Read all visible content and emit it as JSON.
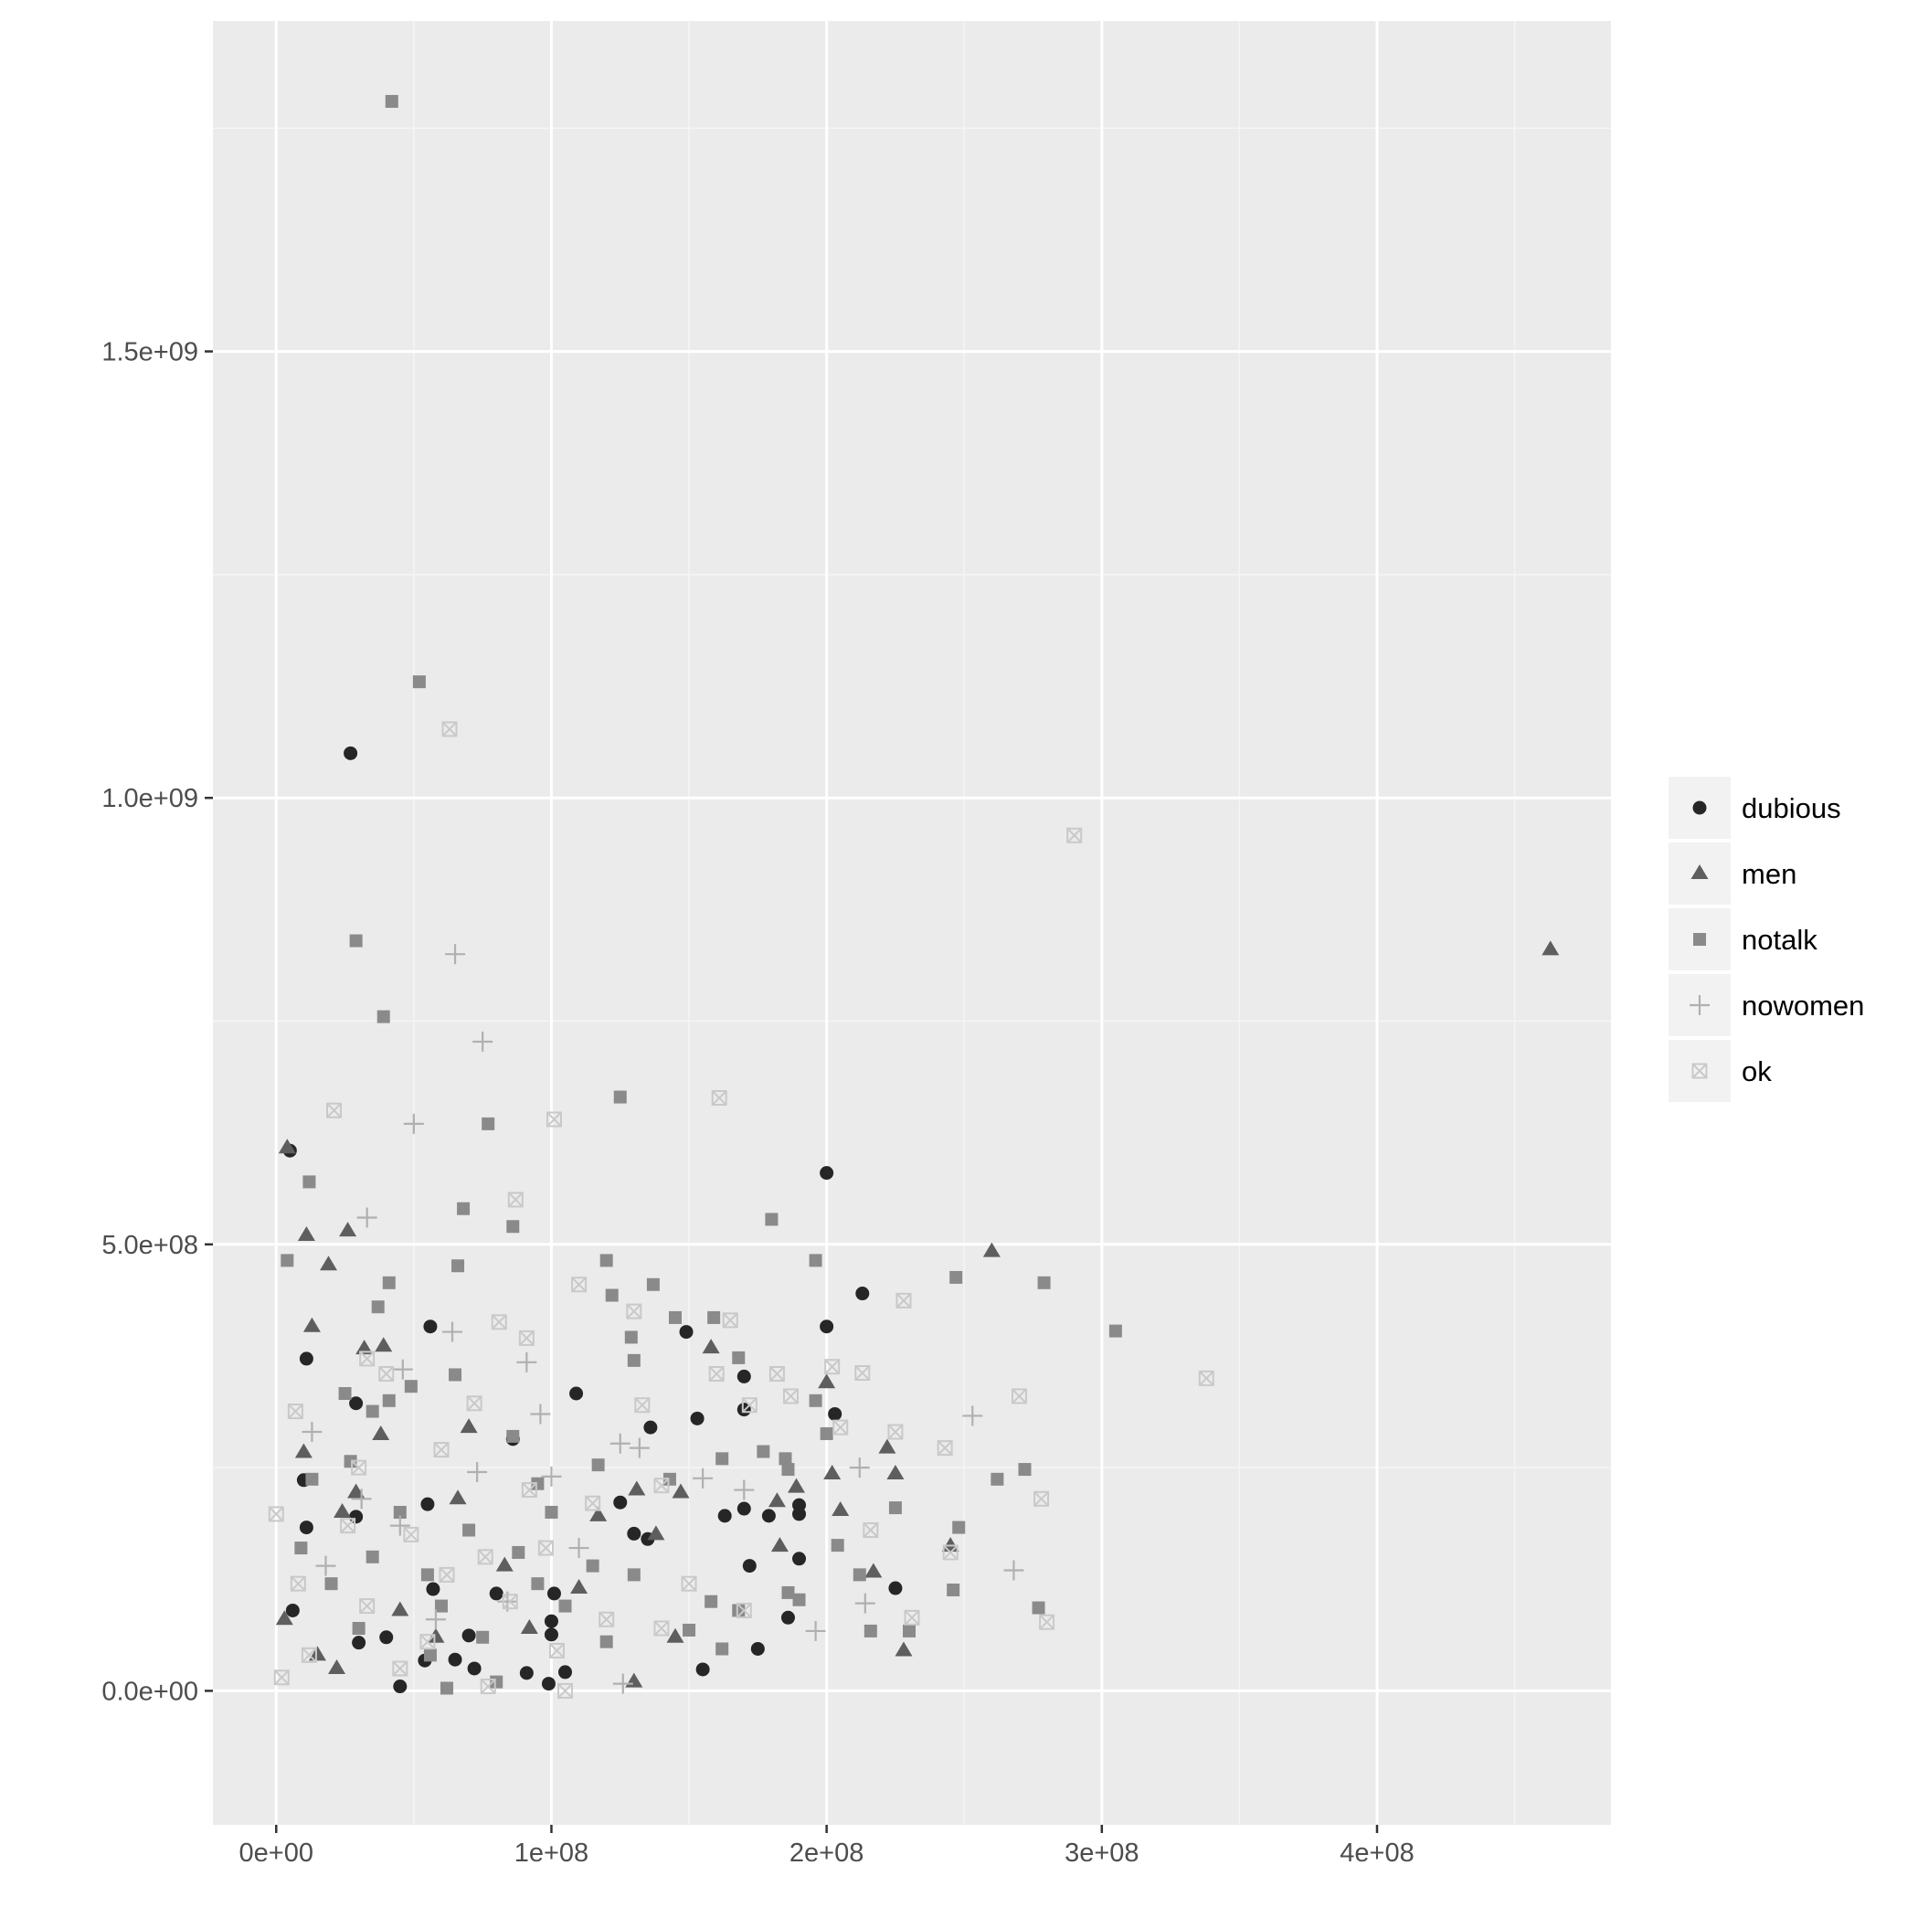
{
  "chart_data": {
    "type": "scatter",
    "title": "",
    "xlabel": "",
    "ylabel": "",
    "xlim": [
      -23000000,
      485000000
    ],
    "ylim": [
      -150000000,
      1870000000
    ],
    "x_ticks": [
      {
        "value": 0,
        "label": "0e+00"
      },
      {
        "value": 100000000,
        "label": "1e+08"
      },
      {
        "value": 200000000,
        "label": "2e+08"
      },
      {
        "value": 300000000,
        "label": "3e+08"
      },
      {
        "value": 400000000,
        "label": "4e+08"
      }
    ],
    "y_ticks": [
      {
        "value": 0,
        "label": "0.0e+00"
      },
      {
        "value": 500000000,
        "label": "5.0e+08"
      },
      {
        "value": 1000000000,
        "label": "1.0e+09"
      },
      {
        "value": 1500000000,
        "label": "1.5e+09"
      }
    ],
    "grid": true,
    "legend_position": "right",
    "colors": {
      "panel_background": "#ebebeb",
      "grid_major": "#ffffff",
      "grid_minor": "#f5f5f5",
      "tick_label": "#4d4d4d",
      "legend_key_background": "#f2f2f2"
    },
    "series": [
      {
        "name": "dubious",
        "shape": "circle",
        "color": "#262626",
        "points": [
          [
            27000000,
            1050000000
          ],
          [
            5000000,
            605000000
          ],
          [
            200000000,
            580000000
          ],
          [
            213000000,
            445000000
          ],
          [
            56000000,
            408000000
          ],
          [
            11000000,
            372000000
          ],
          [
            200000000,
            408000000
          ],
          [
            149000000,
            402000000
          ],
          [
            170000000,
            352000000
          ],
          [
            29000000,
            322000000
          ],
          [
            109000000,
            333000000
          ],
          [
            153000000,
            305000000
          ],
          [
            170000000,
            315000000
          ],
          [
            203000000,
            310000000
          ],
          [
            136000000,
            295000000
          ],
          [
            86000000,
            282000000
          ],
          [
            10000000,
            236000000
          ],
          [
            55000000,
            209000000
          ],
          [
            125000000,
            211000000
          ],
          [
            170000000,
            204000000
          ],
          [
            190000000,
            208000000
          ],
          [
            190000000,
            198000000
          ],
          [
            163000000,
            196000000
          ],
          [
            179000000,
            196000000
          ],
          [
            11000000,
            183000000
          ],
          [
            29000000,
            195000000
          ],
          [
            130000000,
            176000000
          ],
          [
            135000000,
            170000000
          ],
          [
            190000000,
            148000000
          ],
          [
            172000000,
            140000000
          ],
          [
            225000000,
            115000000
          ],
          [
            57000000,
            114000000
          ],
          [
            80000000,
            109000000
          ],
          [
            101000000,
            109000000
          ],
          [
            186000000,
            82000000
          ],
          [
            100000000,
            78000000
          ],
          [
            6000000,
            90000000
          ],
          [
            70000000,
            62000000
          ],
          [
            100000000,
            63000000
          ],
          [
            30000000,
            54000000
          ],
          [
            40000000,
            60000000
          ],
          [
            54000000,
            34000000
          ],
          [
            65000000,
            35000000
          ],
          [
            105000000,
            21000000
          ],
          [
            91000000,
            20000000
          ],
          [
            99000000,
            8000000
          ],
          [
            155000000,
            24000000
          ],
          [
            175000000,
            47000000
          ],
          [
            45000000,
            5000000
          ],
          [
            72000000,
            25000000
          ]
        ]
      },
      {
        "name": "men",
        "shape": "triangle",
        "color": "#5e5e5e",
        "points": [
          [
            463000000,
            830000000
          ],
          [
            4000000,
            608000000
          ],
          [
            11000000,
            510000000
          ],
          [
            26000000,
            515000000
          ],
          [
            19000000,
            477000000
          ],
          [
            260000000,
            492000000
          ],
          [
            13000000,
            408000000
          ],
          [
            39000000,
            386000000
          ],
          [
            32000000,
            383000000
          ],
          [
            158000000,
            384000000
          ],
          [
            38000000,
            287000000
          ],
          [
            70000000,
            295000000
          ],
          [
            200000000,
            345000000
          ],
          [
            10000000,
            267000000
          ],
          [
            202000000,
            243000000
          ],
          [
            222000000,
            272000000
          ],
          [
            225000000,
            243000000
          ],
          [
            29000000,
            222000000
          ],
          [
            131000000,
            225000000
          ],
          [
            147000000,
            222000000
          ],
          [
            182000000,
            212000000
          ],
          [
            205000000,
            202000000
          ],
          [
            245000000,
            162000000
          ],
          [
            24000000,
            200000000
          ],
          [
            66000000,
            215000000
          ],
          [
            117000000,
            196000000
          ],
          [
            138000000,
            175000000
          ],
          [
            183000000,
            162000000
          ],
          [
            217000000,
            133000000
          ],
          [
            83000000,
            140000000
          ],
          [
            110000000,
            115000000
          ],
          [
            189000000,
            228000000
          ],
          [
            228000000,
            45000000
          ],
          [
            130000000,
            10000000
          ],
          [
            3000000,
            80000000
          ],
          [
            15000000,
            40000000
          ],
          [
            22000000,
            25000000
          ],
          [
            45000000,
            90000000
          ],
          [
            58000000,
            60000000
          ],
          [
            92000000,
            70000000
          ],
          [
            145000000,
            60000000
          ]
        ]
      },
      {
        "name": "notalk",
        "shape": "square",
        "color": "#8a8a8a",
        "points": [
          [
            42000000,
            1780000000
          ],
          [
            52000000,
            1130000000
          ],
          [
            29000000,
            840000000
          ],
          [
            39000000,
            755000000
          ],
          [
            125000000,
            665000000
          ],
          [
            77000000,
            635000000
          ],
          [
            12000000,
            570000000
          ],
          [
            180000000,
            528000000
          ],
          [
            68000000,
            540000000
          ],
          [
            86000000,
            520000000
          ],
          [
            4000000,
            482000000
          ],
          [
            66000000,
            476000000
          ],
          [
            120000000,
            482000000
          ],
          [
            196000000,
            482000000
          ],
          [
            41000000,
            457000000
          ],
          [
            137000000,
            455000000
          ],
          [
            247000000,
            463000000
          ],
          [
            279000000,
            457000000
          ],
          [
            122000000,
            443000000
          ],
          [
            305000000,
            403000000
          ],
          [
            37000000,
            430000000
          ],
          [
            145000000,
            418000000
          ],
          [
            159000000,
            418000000
          ],
          [
            129000000,
            396000000
          ],
          [
            130000000,
            370000000
          ],
          [
            168000000,
            373000000
          ],
          [
            65000000,
            354000000
          ],
          [
            49000000,
            341000000
          ],
          [
            41000000,
            325000000
          ],
          [
            25000000,
            333000000
          ],
          [
            35000000,
            313000000
          ],
          [
            196000000,
            325000000
          ],
          [
            200000000,
            288000000
          ],
          [
            185000000,
            260000000
          ],
          [
            272000000,
            248000000
          ],
          [
            262000000,
            237000000
          ],
          [
            177000000,
            268000000
          ],
          [
            186000000,
            248000000
          ],
          [
            86000000,
            285000000
          ],
          [
            162000000,
            260000000
          ],
          [
            117000000,
            253000000
          ],
          [
            27000000,
            257000000
          ],
          [
            13000000,
            237000000
          ],
          [
            95000000,
            232000000
          ],
          [
            143000000,
            237000000
          ],
          [
            225000000,
            205000000
          ],
          [
            248000000,
            183000000
          ],
          [
            204000000,
            163000000
          ],
          [
            277000000,
            93000000
          ],
          [
            246000000,
            113000000
          ],
          [
            212000000,
            130000000
          ],
          [
            186000000,
            110000000
          ],
          [
            190000000,
            102000000
          ],
          [
            168000000,
            90000000
          ],
          [
            158000000,
            100000000
          ],
          [
            150000000,
            68000000
          ],
          [
            230000000,
            67000000
          ],
          [
            216000000,
            67000000
          ],
          [
            162000000,
            47000000
          ],
          [
            56000000,
            40000000
          ],
          [
            80000000,
            10000000
          ],
          [
            62000000,
            3000000
          ],
          [
            105000000,
            95000000
          ],
          [
            115000000,
            140000000
          ],
          [
            70000000,
            180000000
          ],
          [
            45000000,
            200000000
          ],
          [
            9000000,
            160000000
          ],
          [
            20000000,
            120000000
          ],
          [
            35000000,
            150000000
          ],
          [
            55000000,
            130000000
          ],
          [
            88000000,
            155000000
          ],
          [
            100000000,
            200000000
          ],
          [
            130000000,
            130000000
          ],
          [
            60000000,
            95000000
          ],
          [
            95000000,
            120000000
          ],
          [
            30000000,
            70000000
          ],
          [
            75000000,
            60000000
          ],
          [
            120000000,
            55000000
          ]
        ]
      },
      {
        "name": "nowomen",
        "shape": "plus",
        "color": "#b0b0b0",
        "points": [
          [
            65000000,
            825000000
          ],
          [
            75000000,
            727000000
          ],
          [
            50000000,
            635000000
          ],
          [
            33000000,
            530000000
          ],
          [
            64000000,
            402000000
          ],
          [
            91000000,
            368000000
          ],
          [
            46000000,
            360000000
          ],
          [
            96000000,
            310000000
          ],
          [
            13000000,
            290000000
          ],
          [
            253000000,
            308000000
          ],
          [
            268000000,
            135000000
          ],
          [
            212000000,
            250000000
          ],
          [
            125000000,
            277000000
          ],
          [
            132000000,
            272000000
          ],
          [
            155000000,
            238000000
          ],
          [
            196000000,
            67000000
          ],
          [
            214000000,
            98000000
          ],
          [
            73000000,
            245000000
          ],
          [
            31000000,
            215000000
          ],
          [
            45000000,
            185000000
          ],
          [
            110000000,
            160000000
          ],
          [
            170000000,
            225000000
          ],
          [
            126000000,
            8000000
          ],
          [
            84000000,
            100000000
          ],
          [
            18000000,
            140000000
          ],
          [
            58000000,
            80000000
          ],
          [
            100000000,
            240000000
          ]
        ]
      },
      {
        "name": "ok",
        "shape": "boxx",
        "color": "#c9c9c9",
        "points": [
          [
            63000000,
            1077000000
          ],
          [
            290000000,
            958000000
          ],
          [
            21000000,
            650000000
          ],
          [
            101000000,
            640000000
          ],
          [
            161000000,
            664000000
          ],
          [
            87000000,
            550000000
          ],
          [
            110000000,
            455000000
          ],
          [
            228000000,
            437000000
          ],
          [
            81000000,
            413000000
          ],
          [
            91000000,
            395000000
          ],
          [
            130000000,
            425000000
          ],
          [
            165000000,
            415000000
          ],
          [
            33000000,
            372000000
          ],
          [
            40000000,
            355000000
          ],
          [
            202000000,
            363000000
          ],
          [
            213000000,
            356000000
          ],
          [
            338000000,
            350000000
          ],
          [
            270000000,
            330000000
          ],
          [
            172000000,
            320000000
          ],
          [
            7000000,
            313000000
          ],
          [
            72000000,
            322000000
          ],
          [
            133000000,
            320000000
          ],
          [
            225000000,
            290000000
          ],
          [
            243000000,
            272000000
          ],
          [
            278000000,
            215000000
          ],
          [
            280000000,
            77000000
          ],
          [
            231000000,
            82000000
          ],
          [
            245000000,
            155000000
          ],
          [
            216000000,
            180000000
          ],
          [
            205000000,
            295000000
          ],
          [
            160000000,
            355000000
          ],
          [
            182000000,
            355000000
          ],
          [
            187000000,
            330000000
          ],
          [
            60000000,
            270000000
          ],
          [
            92000000,
            225000000
          ],
          [
            115000000,
            210000000
          ],
          [
            140000000,
            230000000
          ],
          [
            26000000,
            185000000
          ],
          [
            0,
            198000000
          ],
          [
            49000000,
            175000000
          ],
          [
            76000000,
            150000000
          ],
          [
            102000000,
            45000000
          ],
          [
            105000000,
            0
          ],
          [
            77000000,
            5000000
          ],
          [
            45000000,
            25000000
          ],
          [
            12000000,
            40000000
          ],
          [
            2000000,
            15000000
          ],
          [
            33000000,
            95000000
          ],
          [
            62000000,
            130000000
          ],
          [
            85000000,
            100000000
          ],
          [
            120000000,
            80000000
          ],
          [
            150000000,
            120000000
          ],
          [
            170000000,
            90000000
          ],
          [
            8000000,
            120000000
          ],
          [
            55000000,
            55000000
          ],
          [
            30000000,
            250000000
          ],
          [
            98000000,
            160000000
          ],
          [
            140000000,
            70000000
          ]
        ]
      }
    ]
  }
}
